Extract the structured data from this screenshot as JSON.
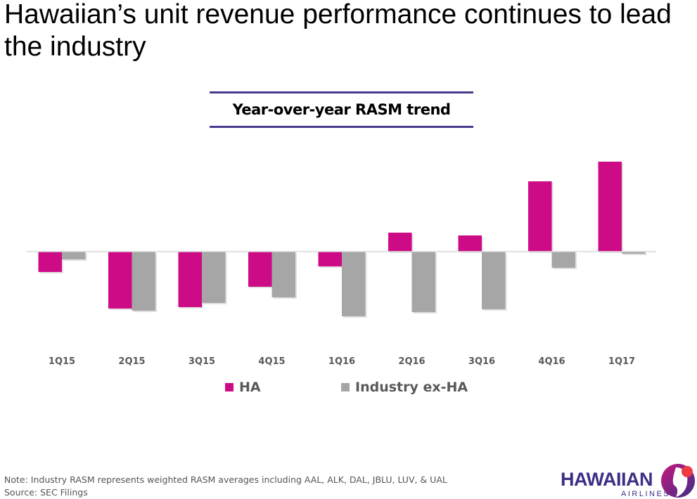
{
  "title": "Hawaiian’s unit revenue performance continues to lead the industry",
  "chart_data": {
    "type": "bar",
    "title": "Year-over-year RASM trend",
    "categories": [
      "1Q15",
      "2Q15",
      "3Q15",
      "4Q15",
      "1Q16",
      "2Q16",
      "3Q16",
      "4Q16",
      "1Q17"
    ],
    "series": [
      {
        "name": "HA",
        "color": "#CE0B87",
        "values": [
          -1.45,
          -4.05,
          -3.95,
          -2.5,
          -1.05,
          1.35,
          1.15,
          5.0,
          6.4
        ]
      },
      {
        "name": "Industry ex-HA",
        "color": "#A6A6A6",
        "values": [
          -0.55,
          -4.2,
          -3.65,
          -3.25,
          -4.6,
          -4.3,
          -4.1,
          -1.15,
          -0.15
        ]
      }
    ],
    "xlabel": "",
    "ylabel": "",
    "ylim": [
      -5,
      7
    ],
    "grid": false,
    "legend": "bottom",
    "axis_ticks_shown": false
  },
  "footnote": {
    "note": "Note: Industry RASM represents weighted RASM averages including AAL, ALK, DAL, JBLU, LUV, & UAL",
    "source": "Source: SEC Filings"
  },
  "logo": {
    "name": "HAWAIIAN",
    "sub": "AIRLINES."
  }
}
